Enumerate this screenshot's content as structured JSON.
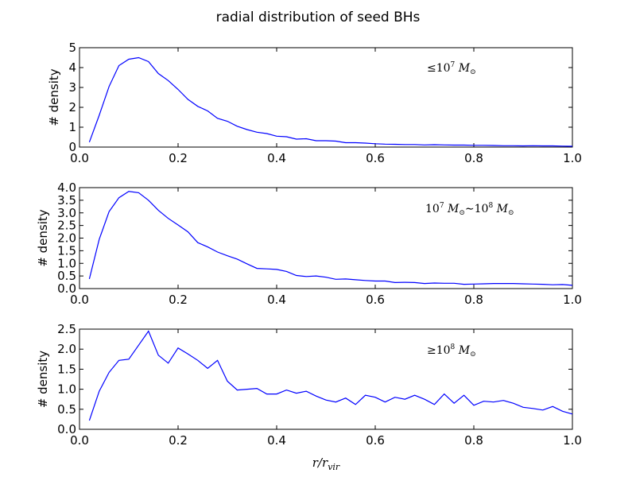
{
  "title": "radial distribution of seed BHs",
  "xlabel": {
    "base": "r/r",
    "sub": "vir"
  },
  "line_color": "#0000ff",
  "chart_data": [
    {
      "type": "line",
      "ylabel": "# density",
      "annotation": {
        "prefix": "≤10",
        "exp": "7",
        "M": "M",
        "sub": "⊙"
      },
      "xlim": [
        0.0,
        1.0
      ],
      "ylim": [
        0,
        5
      ],
      "xticks": [
        "0.0",
        "0.2",
        "0.4",
        "0.6",
        "0.8",
        "1.0"
      ],
      "yticks": [
        "0",
        "1",
        "2",
        "3",
        "4",
        "5"
      ],
      "x": [
        0.02,
        0.04,
        0.06,
        0.08,
        0.1,
        0.12,
        0.14,
        0.16,
        0.18,
        0.2,
        0.22,
        0.24,
        0.26,
        0.28,
        0.3,
        0.32,
        0.34,
        0.36,
        0.38,
        0.4,
        0.42,
        0.44,
        0.46,
        0.48,
        0.5,
        0.52,
        0.54,
        0.56,
        0.58,
        0.6,
        0.62,
        0.64,
        0.66,
        0.68,
        0.7,
        0.72,
        0.74,
        0.76,
        0.78,
        0.8,
        0.82,
        0.84,
        0.86,
        0.88,
        0.9,
        0.92,
        0.94,
        0.96,
        0.98,
        1.0
      ],
      "y": [
        0.25,
        1.6,
        3.05,
        4.1,
        4.42,
        4.5,
        4.3,
        3.7,
        3.35,
        2.9,
        2.4,
        2.05,
        1.82,
        1.45,
        1.3,
        1.05,
        0.88,
        0.75,
        0.68,
        0.55,
        0.52,
        0.4,
        0.42,
        0.32,
        0.32,
        0.3,
        0.22,
        0.22,
        0.2,
        0.17,
        0.15,
        0.14,
        0.13,
        0.13,
        0.11,
        0.12,
        0.11,
        0.1,
        0.1,
        0.09,
        0.09,
        0.08,
        0.07,
        0.07,
        0.06,
        0.07,
        0.06,
        0.06,
        0.05,
        0.04
      ]
    },
    {
      "type": "line",
      "ylabel": "# density",
      "annotation": {
        "lo": "10",
        "lo_exp": "7",
        "M": "M",
        "sub": "⊙",
        "tilde": "∼",
        "hi": "10",
        "hi_exp": "8"
      },
      "xlim": [
        0.0,
        1.0
      ],
      "ylim": [
        0,
        4
      ],
      "xticks": [
        "0.0",
        "0.2",
        "0.4",
        "0.6",
        "0.8",
        "1.0"
      ],
      "yticks": [
        "0.0",
        "0.5",
        "1.0",
        "1.5",
        "2.0",
        "2.5",
        "3.0",
        "3.5",
        "4.0"
      ],
      "x": [
        0.02,
        0.04,
        0.06,
        0.08,
        0.1,
        0.12,
        0.14,
        0.16,
        0.18,
        0.2,
        0.22,
        0.24,
        0.26,
        0.28,
        0.3,
        0.32,
        0.34,
        0.36,
        0.38,
        0.4,
        0.42,
        0.44,
        0.46,
        0.48,
        0.5,
        0.52,
        0.54,
        0.56,
        0.58,
        0.6,
        0.62,
        0.64,
        0.66,
        0.68,
        0.7,
        0.72,
        0.74,
        0.76,
        0.78,
        0.8,
        0.82,
        0.84,
        0.86,
        0.88,
        0.9,
        0.92,
        0.94,
        0.96,
        0.98,
        1.0
      ],
      "y": [
        0.38,
        1.95,
        3.05,
        3.6,
        3.85,
        3.8,
        3.5,
        3.1,
        2.78,
        2.52,
        2.25,
        1.82,
        1.65,
        1.45,
        1.3,
        1.17,
        0.98,
        0.8,
        0.78,
        0.76,
        0.68,
        0.52,
        0.48,
        0.5,
        0.45,
        0.37,
        0.38,
        0.35,
        0.32,
        0.3,
        0.3,
        0.24,
        0.25,
        0.24,
        0.2,
        0.22,
        0.21,
        0.21,
        0.17,
        0.18,
        0.19,
        0.2,
        0.2,
        0.2,
        0.19,
        0.18,
        0.17,
        0.15,
        0.16,
        0.13
      ]
    },
    {
      "type": "line",
      "ylabel": "# density",
      "annotation": {
        "prefix": "≥10",
        "exp": "8",
        "M": "M",
        "sub": "⊙"
      },
      "xlim": [
        0.0,
        1.0
      ],
      "ylim": [
        0,
        2.5
      ],
      "xticks": [
        "0.0",
        "0.2",
        "0.4",
        "0.6",
        "0.8",
        "1.0"
      ],
      "yticks": [
        "0.0",
        "0.5",
        "1.0",
        "1.5",
        "2.0",
        "2.5"
      ],
      "x": [
        0.02,
        0.04,
        0.06,
        0.08,
        0.1,
        0.12,
        0.14,
        0.16,
        0.18,
        0.2,
        0.22,
        0.24,
        0.26,
        0.28,
        0.3,
        0.32,
        0.34,
        0.36,
        0.38,
        0.4,
        0.42,
        0.44,
        0.46,
        0.48,
        0.5,
        0.52,
        0.54,
        0.56,
        0.58,
        0.6,
        0.62,
        0.64,
        0.66,
        0.68,
        0.7,
        0.72,
        0.74,
        0.76,
        0.78,
        0.8,
        0.82,
        0.84,
        0.86,
        0.88,
        0.9,
        0.92,
        0.94,
        0.96,
        0.98,
        1.0
      ],
      "y": [
        0.22,
        0.95,
        1.42,
        1.72,
        1.75,
        2.1,
        2.45,
        1.85,
        1.65,
        2.03,
        1.88,
        1.72,
        1.52,
        1.72,
        1.2,
        0.98,
        1.0,
        1.02,
        0.88,
        0.88,
        0.98,
        0.9,
        0.95,
        0.83,
        0.73,
        0.68,
        0.78,
        0.62,
        0.85,
        0.8,
        0.68,
        0.8,
        0.75,
        0.85,
        0.75,
        0.62,
        0.88,
        0.65,
        0.85,
        0.6,
        0.7,
        0.68,
        0.72,
        0.65,
        0.55,
        0.52,
        0.48,
        0.57,
        0.45,
        0.38
      ]
    }
  ]
}
